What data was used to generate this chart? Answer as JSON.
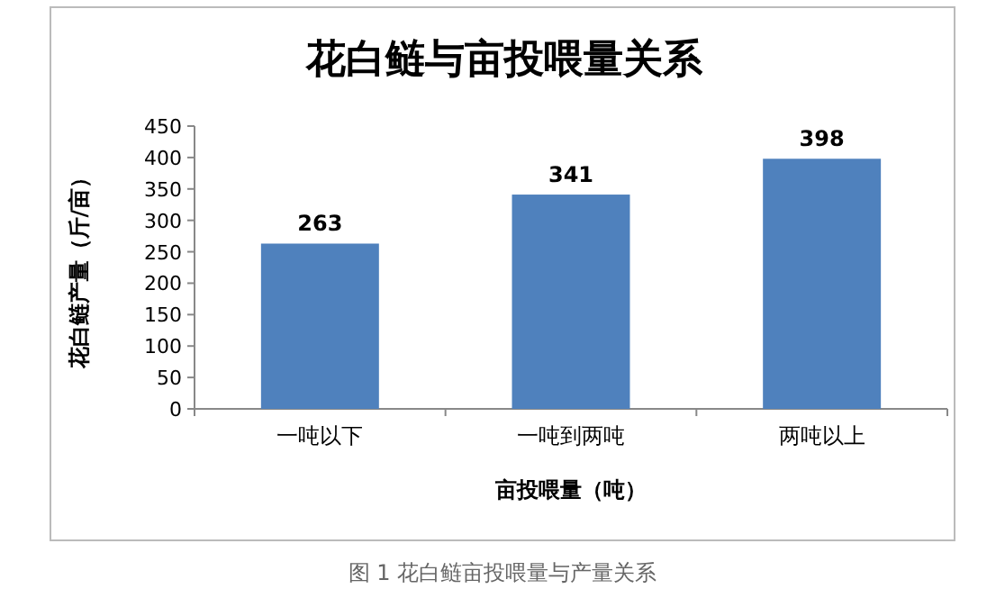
{
  "chart_data": {
    "type": "bar",
    "title": "花白鲢与亩投喂量关系",
    "xlabel": "亩投喂量（吨）",
    "ylabel": "花白鲢产量（斤/亩）",
    "categories": [
      "一吨以下",
      "一吨到两吨",
      "两吨以上"
    ],
    "values": [
      263,
      341,
      398
    ],
    "color": "#4f81bd",
    "data_labels": true,
    "ylim": [
      0,
      450
    ],
    "yticks": [
      0,
      50,
      100,
      150,
      200,
      250,
      300,
      350,
      400,
      450
    ],
    "annotations": [
      "图 1 花白鲢亩投喂量与产量关系"
    ]
  }
}
